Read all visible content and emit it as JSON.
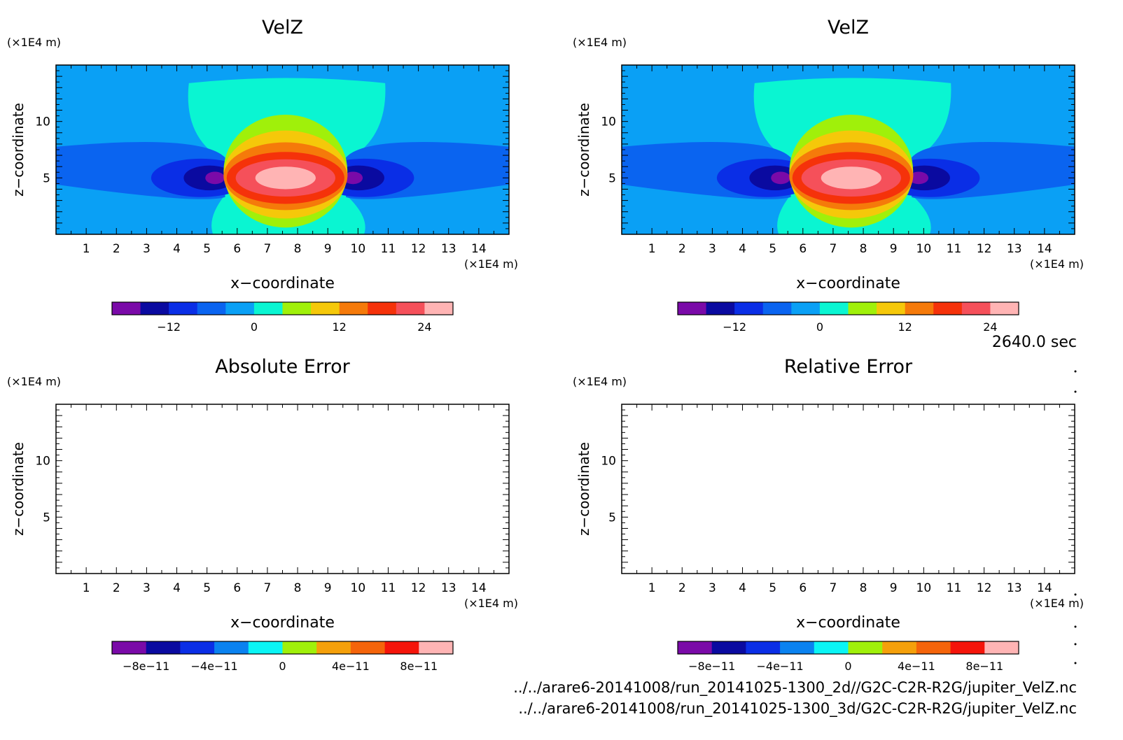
{
  "figure": {
    "time_label": "2640.0 sec",
    "file_paths": [
      "../../arare6-20141008/run_20141025-1300_2d//G2C-C2R-R2G/jupiter_VelZ.nc",
      "../../arare6-20141008/run_20141025-1300_3d/G2C-C2R-R2G/jupiter_VelZ.nc"
    ]
  },
  "colors": {
    "velz_levels": [
      "#7a0aa8",
      "#0a0aa0",
      "#0a2ee6",
      "#0a64f0",
      "#0aa0f5",
      "#0af5d2",
      "#a0f00a",
      "#f5c80a",
      "#f57a0a",
      "#f5320a",
      "#f5505a",
      "#ffb4b4"
    ],
    "error_levels": [
      "#7a0aa8",
      "#0a0aa0",
      "#0a2ee6",
      "#0a82f0",
      "#0af5f5",
      "#a0f00a",
      "#f5a00a",
      "#f5640a",
      "#f5140a",
      "#ffb4b4"
    ]
  },
  "chart_data": [
    {
      "type": "heatmap",
      "title": "VelZ",
      "xlabel": "x−coordinate",
      "ylabel": "z−coordinate",
      "x_unit": "(×1E4 m)",
      "y_unit": "(×1E4 m)",
      "xlim": [
        0,
        15
      ],
      "ylim": [
        0,
        15
      ],
      "xticks": [
        "1",
        "2",
        "3",
        "4",
        "5",
        "6",
        "7",
        "8",
        "9",
        "10",
        "11",
        "12",
        "13",
        "14"
      ],
      "yticks": [
        "5",
        "10"
      ],
      "colorbar_labels": [
        "−12",
        "0",
        "12",
        "24"
      ],
      "colorbar_label_positions": [
        2,
        5,
        8,
        11
      ],
      "field": {
        "background": -3,
        "center_updraft": {
          "x": 7.6,
          "z": 5.0,
          "max": 27
        },
        "left_downdraft": {
          "x": 4.8,
          "z": 5.0,
          "min": -19
        },
        "right_downdraft": {
          "x": 10.3,
          "z": 5.0,
          "min": -19
        }
      }
    },
    {
      "type": "heatmap",
      "title": "VelZ",
      "xlabel": "x−coordinate",
      "ylabel": "z−coordinate",
      "x_unit": "(×1E4 m)",
      "y_unit": "(×1E4 m)",
      "xlim": [
        0,
        15
      ],
      "ylim": [
        0,
        15
      ],
      "xticks": [
        "1",
        "2",
        "3",
        "4",
        "5",
        "6",
        "7",
        "8",
        "9",
        "10",
        "11",
        "12",
        "13",
        "14"
      ],
      "yticks": [
        "5",
        "10"
      ],
      "colorbar_labels": [
        "−12",
        "0",
        "12",
        "24"
      ],
      "colorbar_label_positions": [
        2,
        5,
        8,
        11
      ],
      "field": {
        "background": -3,
        "center_updraft": {
          "x": 7.6,
          "z": 5.0,
          "max": 27
        },
        "left_downdraft": {
          "x": 4.8,
          "z": 5.0,
          "min": -19
        },
        "right_downdraft": {
          "x": 10.3,
          "z": 5.0,
          "min": -19
        }
      }
    },
    {
      "type": "heatmap",
      "title": "Absolute Error",
      "xlabel": "x−coordinate",
      "ylabel": "z−coordinate",
      "x_unit": "(×1E4 m)",
      "y_unit": "(×1E4 m)",
      "xlim": [
        0,
        15
      ],
      "ylim": [
        0,
        15
      ],
      "xticks": [
        "1",
        "2",
        "3",
        "4",
        "5",
        "6",
        "7",
        "8",
        "9",
        "10",
        "11",
        "12",
        "13",
        "14"
      ],
      "yticks": [
        "5",
        "10"
      ],
      "colorbar_labels": [
        "−8e−11",
        "−4e−11",
        "0",
        "4e−11",
        "8e−11"
      ],
      "colorbar_label_positions": [
        1,
        3,
        5,
        7,
        9
      ],
      "field": null
    },
    {
      "type": "heatmap",
      "title": "Relative Error",
      "xlabel": "x−coordinate",
      "ylabel": "z−coordinate",
      "x_unit": "(×1E4 m)",
      "y_unit": "(×1E4 m)",
      "xlim": [
        0,
        15
      ],
      "ylim": [
        0,
        15
      ],
      "xticks": [
        "1",
        "2",
        "3",
        "4",
        "5",
        "6",
        "7",
        "8",
        "9",
        "10",
        "11",
        "12",
        "13",
        "14"
      ],
      "yticks": [
        "5",
        "10"
      ],
      "colorbar_labels": [
        "−8e−11",
        "−4e−11",
        "0",
        "4e−11",
        "8e−11"
      ],
      "colorbar_label_positions": [
        1,
        3,
        5,
        7,
        9
      ],
      "field": null
    }
  ]
}
